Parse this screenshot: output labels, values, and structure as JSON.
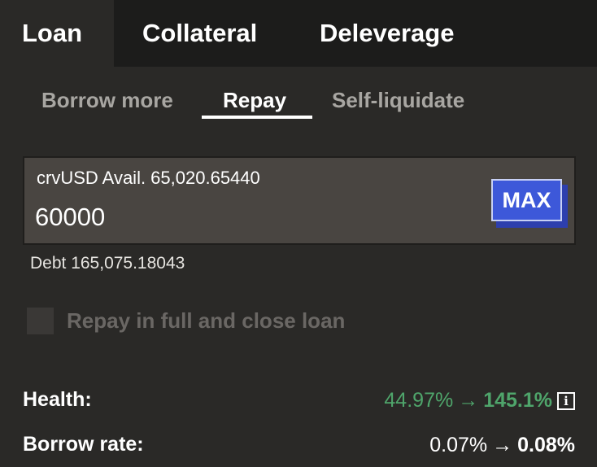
{
  "main_tabs": {
    "loan": "Loan",
    "collateral": "Collateral",
    "deleverage": "Deleverage"
  },
  "sub_tabs": {
    "borrow_more": "Borrow more",
    "repay": "Repay",
    "self_liquidate": "Self-liquidate"
  },
  "repay_input": {
    "label": "crvUSD Avail. 65,020.65440",
    "value": "60000",
    "max_label": "MAX"
  },
  "debt": {
    "text": "Debt 165,075.18043"
  },
  "close_loan": {
    "label": "Repay in full and close loan",
    "checked": false
  },
  "stats": {
    "health": {
      "label": "Health:",
      "from": "44.97%",
      "arrow": "→",
      "to": "145.1%",
      "info_icon": "info-icon",
      "color": "#4fa56b"
    },
    "borrow_rate": {
      "label": "Borrow rate:",
      "from": "0.07%",
      "arrow": "→",
      "to": "0.08%"
    }
  },
  "colors": {
    "background": "#2a2927",
    "tab_bar": "#1c1c1b",
    "input_background": "#494541",
    "max_button": "#3d58d9",
    "positive": "#4fa56b"
  }
}
